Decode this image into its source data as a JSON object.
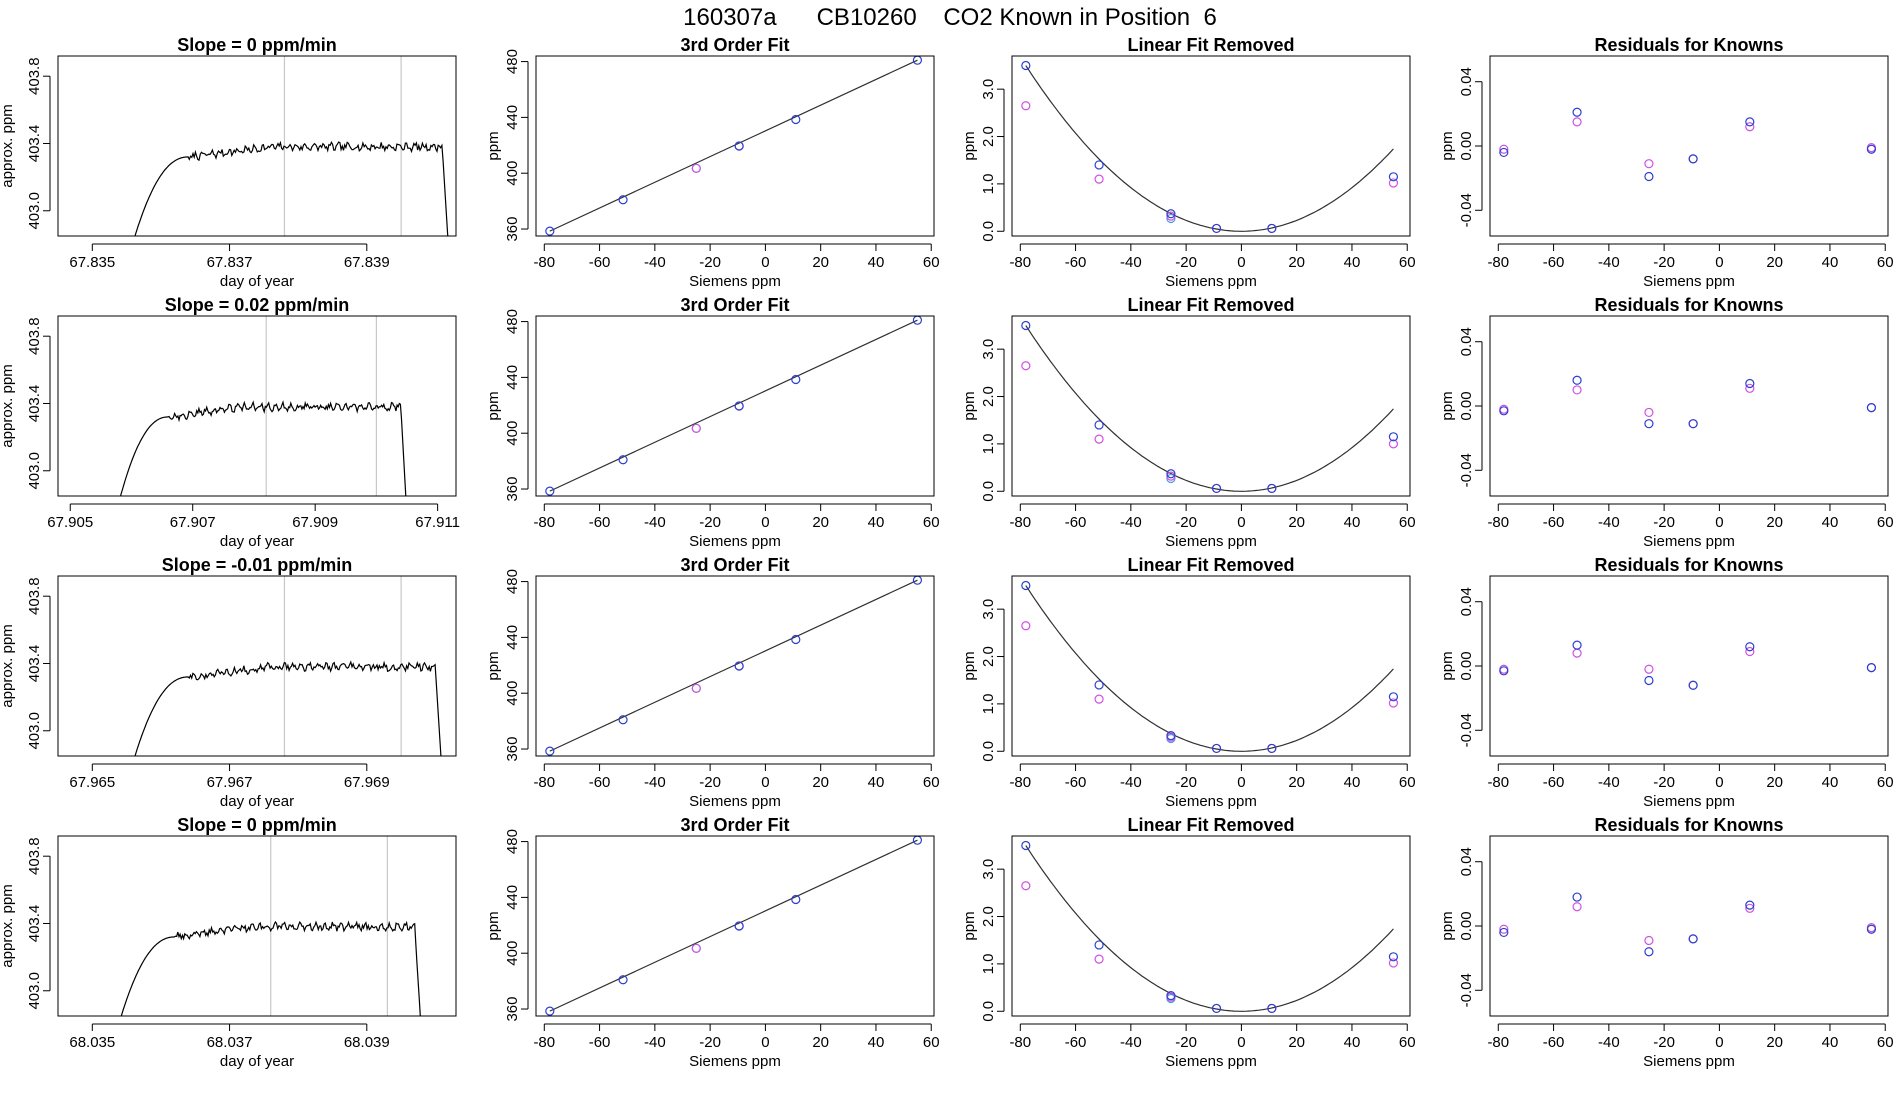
{
  "figure_title": "160307a      CB10260    CO2 Known in Position  6",
  "colors": {
    "trace": "#000000",
    "vline": "#c8c8c8",
    "fit_line": "#303030",
    "point_blue": "#2a3fcf",
    "point_magenta": "#d050e0",
    "point_cyan": "#4aa0e0",
    "axis": "#000000"
  },
  "chart_data": [
    {
      "type": "line",
      "row": 0,
      "col": 0,
      "title": "Slope =  0  ppm/min",
      "xlabel": "day of year",
      "ylabel": "approx. ppm",
      "xlim": [
        67.8345,
        67.8403
      ],
      "ylim": [
        402.85,
        403.92
      ],
      "xticks": [
        67.835,
        67.837,
        67.839
      ],
      "xtick_labels": [
        "67.835",
        "67.837",
        "67.839"
      ],
      "yticks": [
        403.0,
        403.4,
        403.8
      ],
      "ytick_labels": [
        "403.0",
        "403.4",
        "403.8"
      ],
      "vlines": [
        67.8378,
        67.8395
      ],
      "trace": {
        "start": 67.8356,
        "rise_end": 67.8364,
        "plateau_end": 67.8401,
        "end": 67.8402,
        "base": 402.82,
        "level": 403.37
      }
    },
    {
      "type": "scatter",
      "row": 0,
      "col": 1,
      "title": "3rd Order Fit",
      "xlabel": "Siemens ppm",
      "ylabel": "ppm",
      "xlim": [
        -83,
        61
      ],
      "ylim": [
        355,
        484
      ],
      "xticks": [
        -80,
        -60,
        -40,
        -20,
        0,
        20,
        40,
        60
      ],
      "xtick_labels": [
        "-80",
        "-60",
        "-40",
        "-20",
        "0",
        "20",
        "40",
        "60"
      ],
      "yticks": [
        360,
        400,
        440,
        480
      ],
      "ytick_labels": [
        "360",
        "400",
        "440",
        "480"
      ],
      "line": {
        "x": [
          -78,
          55
        ],
        "y": [
          358.5,
          481
        ]
      },
      "points_blue": {
        "x": [
          -78,
          -51.5,
          -9.5,
          11,
          55
        ],
        "y": [
          358.5,
          381,
          419.5,
          438.5,
          481
        ]
      },
      "points_magenta": {
        "x": [
          -25,
          -9.5
        ],
        "y": [
          403.5,
          419.5
        ]
      },
      "points_cyan": {
        "x": [
          -25
        ],
        "y": [
          403.5
        ]
      }
    },
    {
      "type": "scatter",
      "row": 0,
      "col": 2,
      "title": "Linear Fit Removed",
      "xlabel": "Siemens ppm",
      "ylabel": "ppm",
      "xlim": [
        -83,
        61
      ],
      "ylim": [
        -0.1,
        3.7
      ],
      "xticks": [
        -80,
        -60,
        -40,
        -20,
        0,
        20,
        40,
        60
      ],
      "xtick_labels": [
        "-80",
        "-60",
        "-40",
        "-20",
        "0",
        "20",
        "40",
        "60"
      ],
      "yticks": [
        0,
        1,
        2,
        3
      ],
      "ytick_labels": [
        "0.0",
        "1.0",
        "2.0",
        "3.0"
      ],
      "curve_coef": 0.000575,
      "curve_range": [
        -78,
        55
      ],
      "points_blue": {
        "x": [
          -78,
          -51.5,
          -25.5,
          -9,
          11,
          55
        ],
        "y": [
          3.5,
          1.4,
          0.37,
          0.06,
          0.06,
          1.15
        ]
      },
      "points_magenta": {
        "x": [
          -78,
          -51.5,
          -25.5,
          -9,
          11,
          55
        ],
        "y": [
          2.65,
          1.1,
          0.32,
          0.06,
          0.06,
          1.02
        ]
      },
      "points_cyan": {
        "x": [
          -25.5
        ],
        "y": [
          0.27
        ]
      }
    },
    {
      "type": "scatter",
      "row": 0,
      "col": 3,
      "title": "Residuals for Knowns",
      "xlabel": "Siemens ppm",
      "ylabel": "ppm",
      "xlim": [
        -83,
        61
      ],
      "ylim": [
        -0.056,
        0.056
      ],
      "xticks": [
        -80,
        -60,
        -40,
        -20,
        0,
        20,
        40,
        60
      ],
      "xtick_labels": [
        "-80",
        "-60",
        "-40",
        "-20",
        "0",
        "20",
        "40",
        "60"
      ],
      "yticks": [
        -0.04,
        0.0,
        0.04
      ],
      "ytick_labels": [
        "-0.04",
        "0.00",
        "0.04"
      ],
      "points_blue": {
        "x": [
          -78,
          -51.5,
          -25.5,
          -9.5,
          11,
          55
        ],
        "y": [
          -0.004,
          0.021,
          -0.019,
          -0.008,
          0.015,
          -0.002
        ]
      },
      "points_magenta": {
        "x": [
          -78,
          -51.5,
          -25.5,
          -9.5,
          11,
          55
        ],
        "y": [
          -0.002,
          0.015,
          -0.011,
          -0.008,
          0.012,
          -0.001
        ]
      }
    },
    {
      "type": "line",
      "row": 1,
      "col": 0,
      "title": "Slope =  0.02  ppm/min",
      "xlabel": "day of year",
      "ylabel": "approx. ppm",
      "xlim": [
        67.9048,
        67.9113
      ],
      "ylim": [
        402.85,
        403.92
      ],
      "xticks": [
        67.905,
        67.907,
        67.909,
        67.911
      ],
      "xtick_labels": [
        "67.905",
        "67.907",
        "67.909",
        "67.911"
      ],
      "yticks": [
        403.0,
        403.4,
        403.8
      ],
      "ytick_labels": [
        "403.0",
        "403.4",
        "403.8"
      ],
      "vlines": [
        67.9082,
        67.91
      ],
      "trace": {
        "start": 67.9058,
        "rise_end": 67.9066,
        "plateau_end": 67.9104,
        "end": 67.9105,
        "base": 402.82,
        "level": 403.37
      }
    },
    {
      "type": "scatter",
      "row": 1,
      "col": 1,
      "title": "3rd Order Fit",
      "xlabel": "Siemens ppm",
      "ylabel": "ppm",
      "xlim": [
        -83,
        61
      ],
      "ylim": [
        355,
        484
      ],
      "xticks": [
        -80,
        -60,
        -40,
        -20,
        0,
        20,
        40,
        60
      ],
      "xtick_labels": [
        "-80",
        "-60",
        "-40",
        "-20",
        "0",
        "20",
        "40",
        "60"
      ],
      "yticks": [
        360,
        400,
        440,
        480
      ],
      "ytick_labels": [
        "360",
        "400",
        "440",
        "480"
      ],
      "line": {
        "x": [
          -78,
          55
        ],
        "y": [
          358.5,
          481
        ]
      },
      "points_blue": {
        "x": [
          -78,
          -51.5,
          -9.5,
          11,
          55
        ],
        "y": [
          358.5,
          381,
          419.5,
          438.5,
          481
        ]
      },
      "points_magenta": {
        "x": [
          -25,
          -9.5
        ],
        "y": [
          403.5,
          419.5
        ]
      },
      "points_cyan": {
        "x": [
          -25
        ],
        "y": [
          403.5
        ]
      }
    },
    {
      "type": "scatter",
      "row": 1,
      "col": 2,
      "title": "Linear Fit Removed",
      "xlabel": "Siemens ppm",
      "ylabel": "ppm",
      "xlim": [
        -83,
        61
      ],
      "ylim": [
        -0.1,
        3.7
      ],
      "xticks": [
        -80,
        -60,
        -40,
        -20,
        0,
        20,
        40,
        60
      ],
      "xtick_labels": [
        "-80",
        "-60",
        "-40",
        "-20",
        "0",
        "20",
        "40",
        "60"
      ],
      "yticks": [
        0,
        1,
        2,
        3
      ],
      "ytick_labels": [
        "0.0",
        "1.0",
        "2.0",
        "3.0"
      ],
      "curve_coef": 0.000575,
      "curve_range": [
        -78,
        55
      ],
      "points_blue": {
        "x": [
          -78,
          -51.5,
          -25.5,
          -9,
          11,
          55
        ],
        "y": [
          3.5,
          1.4,
          0.37,
          0.06,
          0.06,
          1.15
        ]
      },
      "points_magenta": {
        "x": [
          -78,
          -51.5,
          -25.5,
          -9,
          11,
          55
        ],
        "y": [
          2.65,
          1.1,
          0.32,
          0.06,
          0.06,
          1.0
        ]
      },
      "points_cyan": {
        "x": [
          -25.5
        ],
        "y": [
          0.27
        ]
      }
    },
    {
      "type": "scatter",
      "row": 1,
      "col": 3,
      "title": "Residuals for Knowns",
      "xlabel": "Siemens ppm",
      "ylabel": "ppm",
      "xlim": [
        -83,
        61
      ],
      "ylim": [
        -0.056,
        0.056
      ],
      "xticks": [
        -80,
        -60,
        -40,
        -20,
        0,
        20,
        40,
        60
      ],
      "xtick_labels": [
        "-80",
        "-60",
        "-40",
        "-20",
        "0",
        "20",
        "40",
        "60"
      ],
      "yticks": [
        -0.04,
        0.0,
        0.04
      ],
      "ytick_labels": [
        "-0.04",
        "0.00",
        "0.04"
      ],
      "points_blue": {
        "x": [
          -78,
          -51.5,
          -25.5,
          -9.5,
          11,
          55
        ],
        "y": [
          -0.003,
          0.016,
          -0.011,
          -0.011,
          0.014,
          -0.001
        ]
      },
      "points_magenta": {
        "x": [
          -78,
          -51.5,
          -25.5,
          -9.5,
          11,
          55
        ],
        "y": [
          -0.002,
          0.01,
          -0.004,
          -0.011,
          0.011,
          -0.001
        ]
      }
    },
    {
      "type": "line",
      "row": 2,
      "col": 0,
      "title": "Slope =  -0.01  ppm/min",
      "xlabel": "day of year",
      "ylabel": "approx. ppm",
      "xlim": [
        67.9645,
        67.9703
      ],
      "ylim": [
        402.85,
        403.92
      ],
      "xticks": [
        67.965,
        67.967,
        67.969
      ],
      "xtick_labels": [
        "67.965",
        "67.967",
        "67.969"
      ],
      "yticks": [
        403.0,
        403.4,
        403.8
      ],
      "ytick_labels": [
        "403.0",
        "403.4",
        "403.8"
      ],
      "vlines": [
        67.9678,
        67.9695
      ],
      "trace": {
        "start": 67.9656,
        "rise_end": 67.9664,
        "plateau_end": 67.97,
        "end": 67.9701,
        "base": 402.82,
        "level": 403.37
      }
    },
    {
      "type": "scatter",
      "row": 2,
      "col": 1,
      "title": "3rd Order Fit",
      "xlabel": "Siemens ppm",
      "ylabel": "ppm",
      "xlim": [
        -83,
        61
      ],
      "ylim": [
        355,
        484
      ],
      "xticks": [
        -80,
        -60,
        -40,
        -20,
        0,
        20,
        40,
        60
      ],
      "xtick_labels": [
        "-80",
        "-60",
        "-40",
        "-20",
        "0",
        "20",
        "40",
        "60"
      ],
      "yticks": [
        360,
        400,
        440,
        480
      ],
      "ytick_labels": [
        "360",
        "400",
        "440",
        "480"
      ],
      "line": {
        "x": [
          -78,
          55
        ],
        "y": [
          358.5,
          481
        ]
      },
      "points_blue": {
        "x": [
          -78,
          -51.5,
          -9.5,
          11,
          55
        ],
        "y": [
          358.5,
          381,
          419.5,
          438.5,
          481
        ]
      },
      "points_magenta": {
        "x": [
          -25,
          -9.5
        ],
        "y": [
          403.5,
          419.5
        ]
      },
      "points_cyan": {
        "x": [
          -25
        ],
        "y": [
          403.5
        ]
      }
    },
    {
      "type": "scatter",
      "row": 2,
      "col": 2,
      "title": "Linear Fit Removed",
      "xlabel": "Siemens ppm",
      "ylabel": "ppm",
      "xlim": [
        -83,
        61
      ],
      "ylim": [
        -0.1,
        3.7
      ],
      "xticks": [
        -80,
        -60,
        -40,
        -20,
        0,
        20,
        40,
        60
      ],
      "xtick_labels": [
        "-80",
        "-60",
        "-40",
        "-20",
        "0",
        "20",
        "40",
        "60"
      ],
      "yticks": [
        0,
        1,
        2,
        3
      ],
      "ytick_labels": [
        "0.0",
        "1.0",
        "2.0",
        "3.0"
      ],
      "curve_coef": 0.000575,
      "curve_range": [
        -78,
        55
      ],
      "points_blue": {
        "x": [
          -78,
          -51.5,
          -25.5,
          -9,
          11,
          55
        ],
        "y": [
          3.5,
          1.4,
          0.33,
          0.06,
          0.06,
          1.15
        ]
      },
      "points_magenta": {
        "x": [
          -78,
          -51.5,
          -25.5,
          -9,
          11,
          55
        ],
        "y": [
          2.65,
          1.1,
          0.3,
          0.06,
          0.06,
          1.02
        ]
      },
      "points_cyan": {
        "x": [
          -25.5
        ],
        "y": [
          0.27
        ]
      }
    },
    {
      "type": "scatter",
      "row": 2,
      "col": 3,
      "title": "Residuals for Knowns",
      "xlabel": "Siemens ppm",
      "ylabel": "ppm",
      "xlim": [
        -83,
        61
      ],
      "ylim": [
        -0.056,
        0.056
      ],
      "xticks": [
        -80,
        -60,
        -40,
        -20,
        0,
        20,
        40,
        60
      ],
      "xtick_labels": [
        "-80",
        "-60",
        "-40",
        "-20",
        "0",
        "20",
        "40",
        "60"
      ],
      "yticks": [
        -0.04,
        0.0,
        0.04
      ],
      "ytick_labels": [
        "-0.04",
        "0.00",
        "0.04"
      ],
      "points_blue": {
        "x": [
          -78,
          -51.5,
          -25.5,
          -9.5,
          11,
          55
        ],
        "y": [
          -0.003,
          0.013,
          -0.009,
          -0.012,
          0.012,
          -0.001
        ]
      },
      "points_magenta": {
        "x": [
          -78,
          -51.5,
          -25.5,
          -9.5,
          11,
          55
        ],
        "y": [
          -0.002,
          0.008,
          -0.002,
          -0.012,
          0.009,
          -0.001
        ]
      }
    },
    {
      "type": "line",
      "row": 3,
      "col": 0,
      "title": "Slope =  0  ppm/min",
      "xlabel": "day of year",
      "ylabel": "approx. ppm",
      "xlim": [
        68.0345,
        68.0403
      ],
      "ylim": [
        402.85,
        403.92
      ],
      "xticks": [
        68.035,
        68.037,
        68.039
      ],
      "xtick_labels": [
        "68.035",
        "68.037",
        "68.039"
      ],
      "yticks": [
        403.0,
        403.4,
        403.8
      ],
      "ytick_labels": [
        "403.0",
        "403.4",
        "403.8"
      ],
      "vlines": [
        68.0376,
        68.0393
      ],
      "trace": {
        "start": 68.0354,
        "rise_end": 68.0362,
        "plateau_end": 68.0397,
        "end": 68.0398,
        "base": 402.82,
        "level": 403.37
      }
    },
    {
      "type": "scatter",
      "row": 3,
      "col": 1,
      "title": "3rd Order Fit",
      "xlabel": "Siemens ppm",
      "ylabel": "ppm",
      "xlim": [
        -83,
        61
      ],
      "ylim": [
        355,
        484
      ],
      "xticks": [
        -80,
        -60,
        -40,
        -20,
        0,
        20,
        40,
        60
      ],
      "xtick_labels": [
        "-80",
        "-60",
        "-40",
        "-20",
        "0",
        "20",
        "40",
        "60"
      ],
      "yticks": [
        360,
        400,
        440,
        480
      ],
      "ytick_labels": [
        "360",
        "400",
        "440",
        "480"
      ],
      "line": {
        "x": [
          -78,
          55
        ],
        "y": [
          358.5,
          481
        ]
      },
      "points_blue": {
        "x": [
          -78,
          -51.5,
          -9.5,
          11,
          55
        ],
        "y": [
          358.5,
          381,
          419.5,
          438.5,
          481
        ]
      },
      "points_magenta": {
        "x": [
          -25,
          -9.5
        ],
        "y": [
          403.5,
          419.5
        ]
      },
      "points_cyan": {
        "x": [
          -25
        ],
        "y": [
          403.5
        ]
      }
    },
    {
      "type": "scatter",
      "row": 3,
      "col": 2,
      "title": "Linear Fit Removed",
      "xlabel": "Siemens ppm",
      "ylabel": "ppm",
      "xlim": [
        -83,
        61
      ],
      "ylim": [
        -0.1,
        3.7
      ],
      "xticks": [
        -80,
        -60,
        -40,
        -20,
        0,
        20,
        40,
        60
      ],
      "xtick_labels": [
        "-80",
        "-60",
        "-40",
        "-20",
        "0",
        "20",
        "40",
        "60"
      ],
      "yticks": [
        0,
        1,
        2,
        3
      ],
      "ytick_labels": [
        "0.0",
        "1.0",
        "2.0",
        "3.0"
      ],
      "curve_coef": 0.000575,
      "curve_range": [
        -78,
        55
      ],
      "points_blue": {
        "x": [
          -78,
          -51.5,
          -25.5,
          -9,
          11,
          55
        ],
        "y": [
          3.5,
          1.4,
          0.33,
          0.06,
          0.06,
          1.15
        ]
      },
      "points_magenta": {
        "x": [
          -78,
          -51.5,
          -25.5,
          -9,
          11,
          55
        ],
        "y": [
          2.65,
          1.1,
          0.3,
          0.06,
          0.06,
          1.02
        ]
      },
      "points_cyan": {
        "x": [
          -25.5
        ],
        "y": [
          0.27
        ]
      }
    },
    {
      "type": "scatter",
      "row": 3,
      "col": 3,
      "title": "Residuals for Knowns",
      "xlabel": "Siemens ppm",
      "ylabel": "ppm",
      "xlim": [
        -83,
        61
      ],
      "ylim": [
        -0.056,
        0.056
      ],
      "xticks": [
        -80,
        -60,
        -40,
        -20,
        0,
        20,
        40,
        60
      ],
      "xtick_labels": [
        "-80",
        "-60",
        "-40",
        "-20",
        "0",
        "20",
        "40",
        "60"
      ],
      "yticks": [
        -0.04,
        0.0,
        0.04
      ],
      "ytick_labels": [
        "-0.04",
        "0.00",
        "0.04"
      ],
      "points_blue": {
        "x": [
          -78,
          -51.5,
          -25.5,
          -9.5,
          11,
          55
        ],
        "y": [
          -0.004,
          0.018,
          -0.016,
          -0.008,
          0.013,
          -0.002
        ]
      },
      "points_magenta": {
        "x": [
          -78,
          -51.5,
          -25.5,
          -9.5,
          11,
          55
        ],
        "y": [
          -0.002,
          0.012,
          -0.009,
          -0.008,
          0.011,
          -0.001
        ]
      }
    }
  ]
}
